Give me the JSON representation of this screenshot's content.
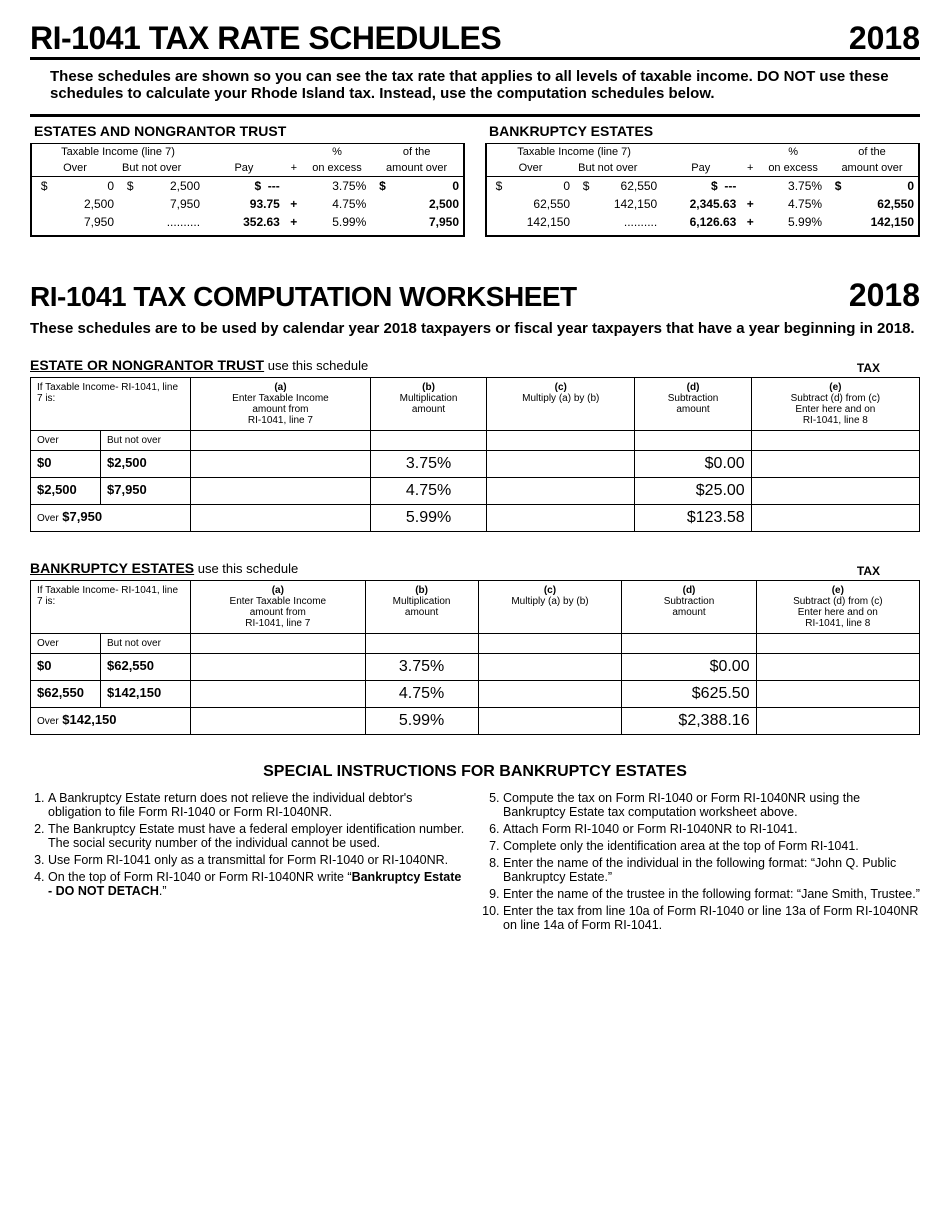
{
  "title": "RI-1041 TAX RATE SCHEDULES",
  "year": "2018",
  "intro": "These schedules are shown so you can see the tax rate that applies to all levels of taxable income. DO NOT use these schedules to calculate your Rhode Island tax.  Instead, use the computation schedules below.",
  "rate_headers": {
    "taxable": "Taxable Income (line 7)",
    "over": "Over",
    "but_not_over": "But not over",
    "pay": "Pay",
    "plus": "+",
    "pct": "%",
    "on_excess": "on excess",
    "of_the": "of the",
    "amount_over": "amount over"
  },
  "tables": {
    "estates": {
      "title": "ESTATES AND NONGRANTOR TRUST",
      "rows": [
        {
          "over": "0",
          "bno": "2,500",
          "pay": "---",
          "plus": "",
          "pct": "3.75%",
          "amt": "0",
          "d1": "$",
          "d2": "$",
          "d3": "$",
          "d4": "$"
        },
        {
          "over": "2,500",
          "bno": "7,950",
          "pay": "93.75",
          "plus": "+",
          "pct": "4.75%",
          "amt": "2,500",
          "d1": "",
          "d2": "",
          "d3": "",
          "d4": ""
        },
        {
          "over": "7,950",
          "bno": "..........",
          "pay": "352.63",
          "plus": "+",
          "pct": "5.99%",
          "amt": "7,950",
          "d1": "",
          "d2": "",
          "d3": "",
          "d4": ""
        }
      ]
    },
    "bankruptcy": {
      "title": "BANKRUPTCY ESTATES",
      "rows": [
        {
          "over": "0",
          "bno": "62,550",
          "pay": "---",
          "plus": "",
          "pct": "3.75%",
          "amt": "0",
          "d1": "$",
          "d2": "$",
          "d3": "$",
          "d4": "$"
        },
        {
          "over": "62,550",
          "bno": "142,150",
          "pay": "2,345.63",
          "plus": "+",
          "pct": "4.75%",
          "amt": "62,550",
          "d1": "",
          "d2": "",
          "d3": "",
          "d4": ""
        },
        {
          "over": "142,150",
          "bno": "..........",
          "pay": "6,126.63",
          "plus": "+",
          "pct": "5.99%",
          "amt": "142,150",
          "d1": "",
          "d2": "",
          "d3": "",
          "d4": ""
        }
      ]
    }
  },
  "ws": {
    "title": "RI-1041 TAX COMPUTATION WORKSHEET",
    "year": "2018",
    "intro": "These schedules are to be used by calendar year 2018 taxpayers or fiscal year taxpayers that have a year beginning in 2018.",
    "tax": "TAX",
    "cols": {
      "if": "If Taxable Income-\nRI-1041, line 7 is:",
      "over": "Over",
      "bno": "But not over",
      "a_l1": "(a)",
      "a_l2": "Enter Taxable Income",
      "a_l3": "amount from",
      "a_l4": "RI-1041, line 7",
      "b_l1": "(b)",
      "b_l2": "Multiplication",
      "b_l3": "amount",
      "c_l1": "(c)",
      "c_l2": "Multiply (a) by (b)",
      "d_l1": "(d)",
      "d_l2": "Subtraction",
      "d_l3": "amount",
      "e_l1": "(e)",
      "e_l2": "Subtract (d) from (c)",
      "e_l3": "Enter here and on",
      "e_l4": "RI-1041, line 8"
    },
    "estate": {
      "title": "ESTATE OR NONGRANTOR TRUST",
      "sub": " use this schedule",
      "rows": [
        {
          "over": "$0",
          "bno": "$2,500",
          "b": "3.75%",
          "d": "$0.00"
        },
        {
          "over": "$2,500",
          "bno": "$7,950",
          "b": "4.75%",
          "d": "$25.00"
        },
        {
          "over": "Over",
          "bno": "$7,950",
          "b": "5.99%",
          "d": "$123.58",
          "merged": true
        }
      ]
    },
    "bank": {
      "title": "BANKRUPTCY ESTATES",
      "sub": " use this schedule",
      "rows": [
        {
          "over": "$0",
          "bno": "$62,550",
          "b": "3.75%",
          "d": "$0.00"
        },
        {
          "over": "$62,550",
          "bno": "$142,150",
          "b": "4.75%",
          "d": "$625.50"
        },
        {
          "over": "Over",
          "bno": "$142,150",
          "b": "5.99%",
          "d": "$2,388.16",
          "merged": true
        }
      ]
    }
  },
  "special": {
    "title": "SPECIAL INSTRUCTIONS FOR BANKRUPTCY ESTATES",
    "left": [
      "A Bankruptcy Estate return does not relieve the individual debtor's obligation to file Form RI-1040 or Form RI-1040NR.",
      "The Bankruptcy Estate must have a federal employer identification number.  The social security number of the individual cannot be used.",
      "Use Form RI-1041 only as a transmittal for Form RI-1040 or RI-1040NR.",
      "On the top of Form RI-1040 or Form RI-1040NR write “Bankruptcy Estate - DO NOT DETACH.”"
    ],
    "right": [
      "Compute the tax on Form RI-1040 or Form RI-1040NR using the Bankruptcy Estate tax computation worksheet above.",
      "Attach Form RI-1040 or Form RI-1040NR to RI-1041.",
      "Complete only the identification area at the top of Form RI-1041.",
      "Enter the name of the individual in the following format: “John Q. Public Bankruptcy Estate.”",
      "Enter the name of the trustee in the following format: “Jane Smith, Trustee.”",
      "Enter the tax from line 10a of Form RI-1040 or line 13a of Form RI-1040NR on line 14a of Form RI-1041."
    ]
  }
}
